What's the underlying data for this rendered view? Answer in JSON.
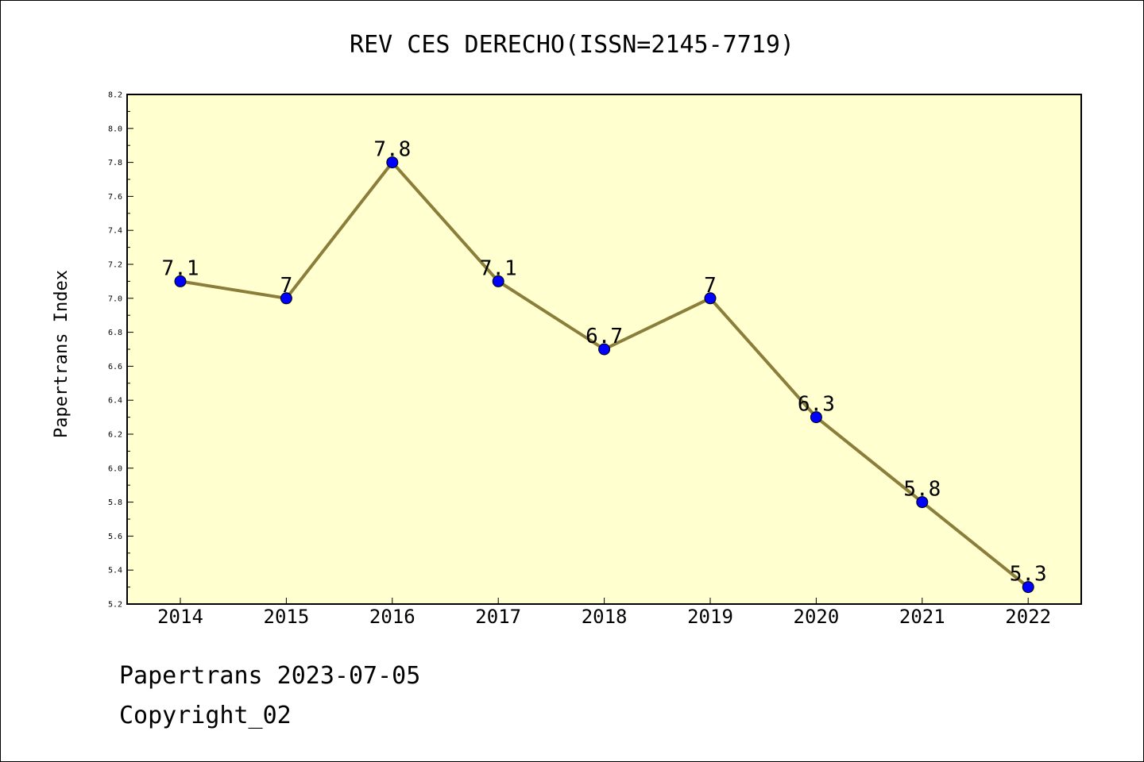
{
  "chart_data": {
    "type": "line",
    "title": "REV CES DERECHO(ISSN=2145-7719)",
    "ylabel": "Papertrans Index",
    "xlabel": "",
    "categories": [
      "2014",
      "2015",
      "2016",
      "2017",
      "2018",
      "2019",
      "2020",
      "2021",
      "2022"
    ],
    "values": [
      7.1,
      7.0,
      7.8,
      7.1,
      6.7,
      7.0,
      6.3,
      5.8,
      5.3
    ],
    "data_labels": [
      "7.1",
      "7",
      "7.8",
      "7.1",
      "6.7",
      "7",
      "6.3",
      "5.8",
      "5.3"
    ],
    "ylim": [
      5.2,
      8.2
    ],
    "yticks": [
      "5.2",
      "5.4",
      "5.6",
      "5.8",
      "6.0",
      "6.2",
      "6.4",
      "6.6",
      "6.8",
      "7.0",
      "7.2",
      "7.4",
      "7.6",
      "7.8",
      "8.0",
      "8.2"
    ],
    "grid": false,
    "colors": {
      "plot_background": "#ffffd0",
      "line": "#8b7d3a",
      "marker": "#0000ff"
    }
  },
  "footer": {
    "line1": "Papertrans 2023-07-05",
    "line2": "Copyright_02"
  }
}
